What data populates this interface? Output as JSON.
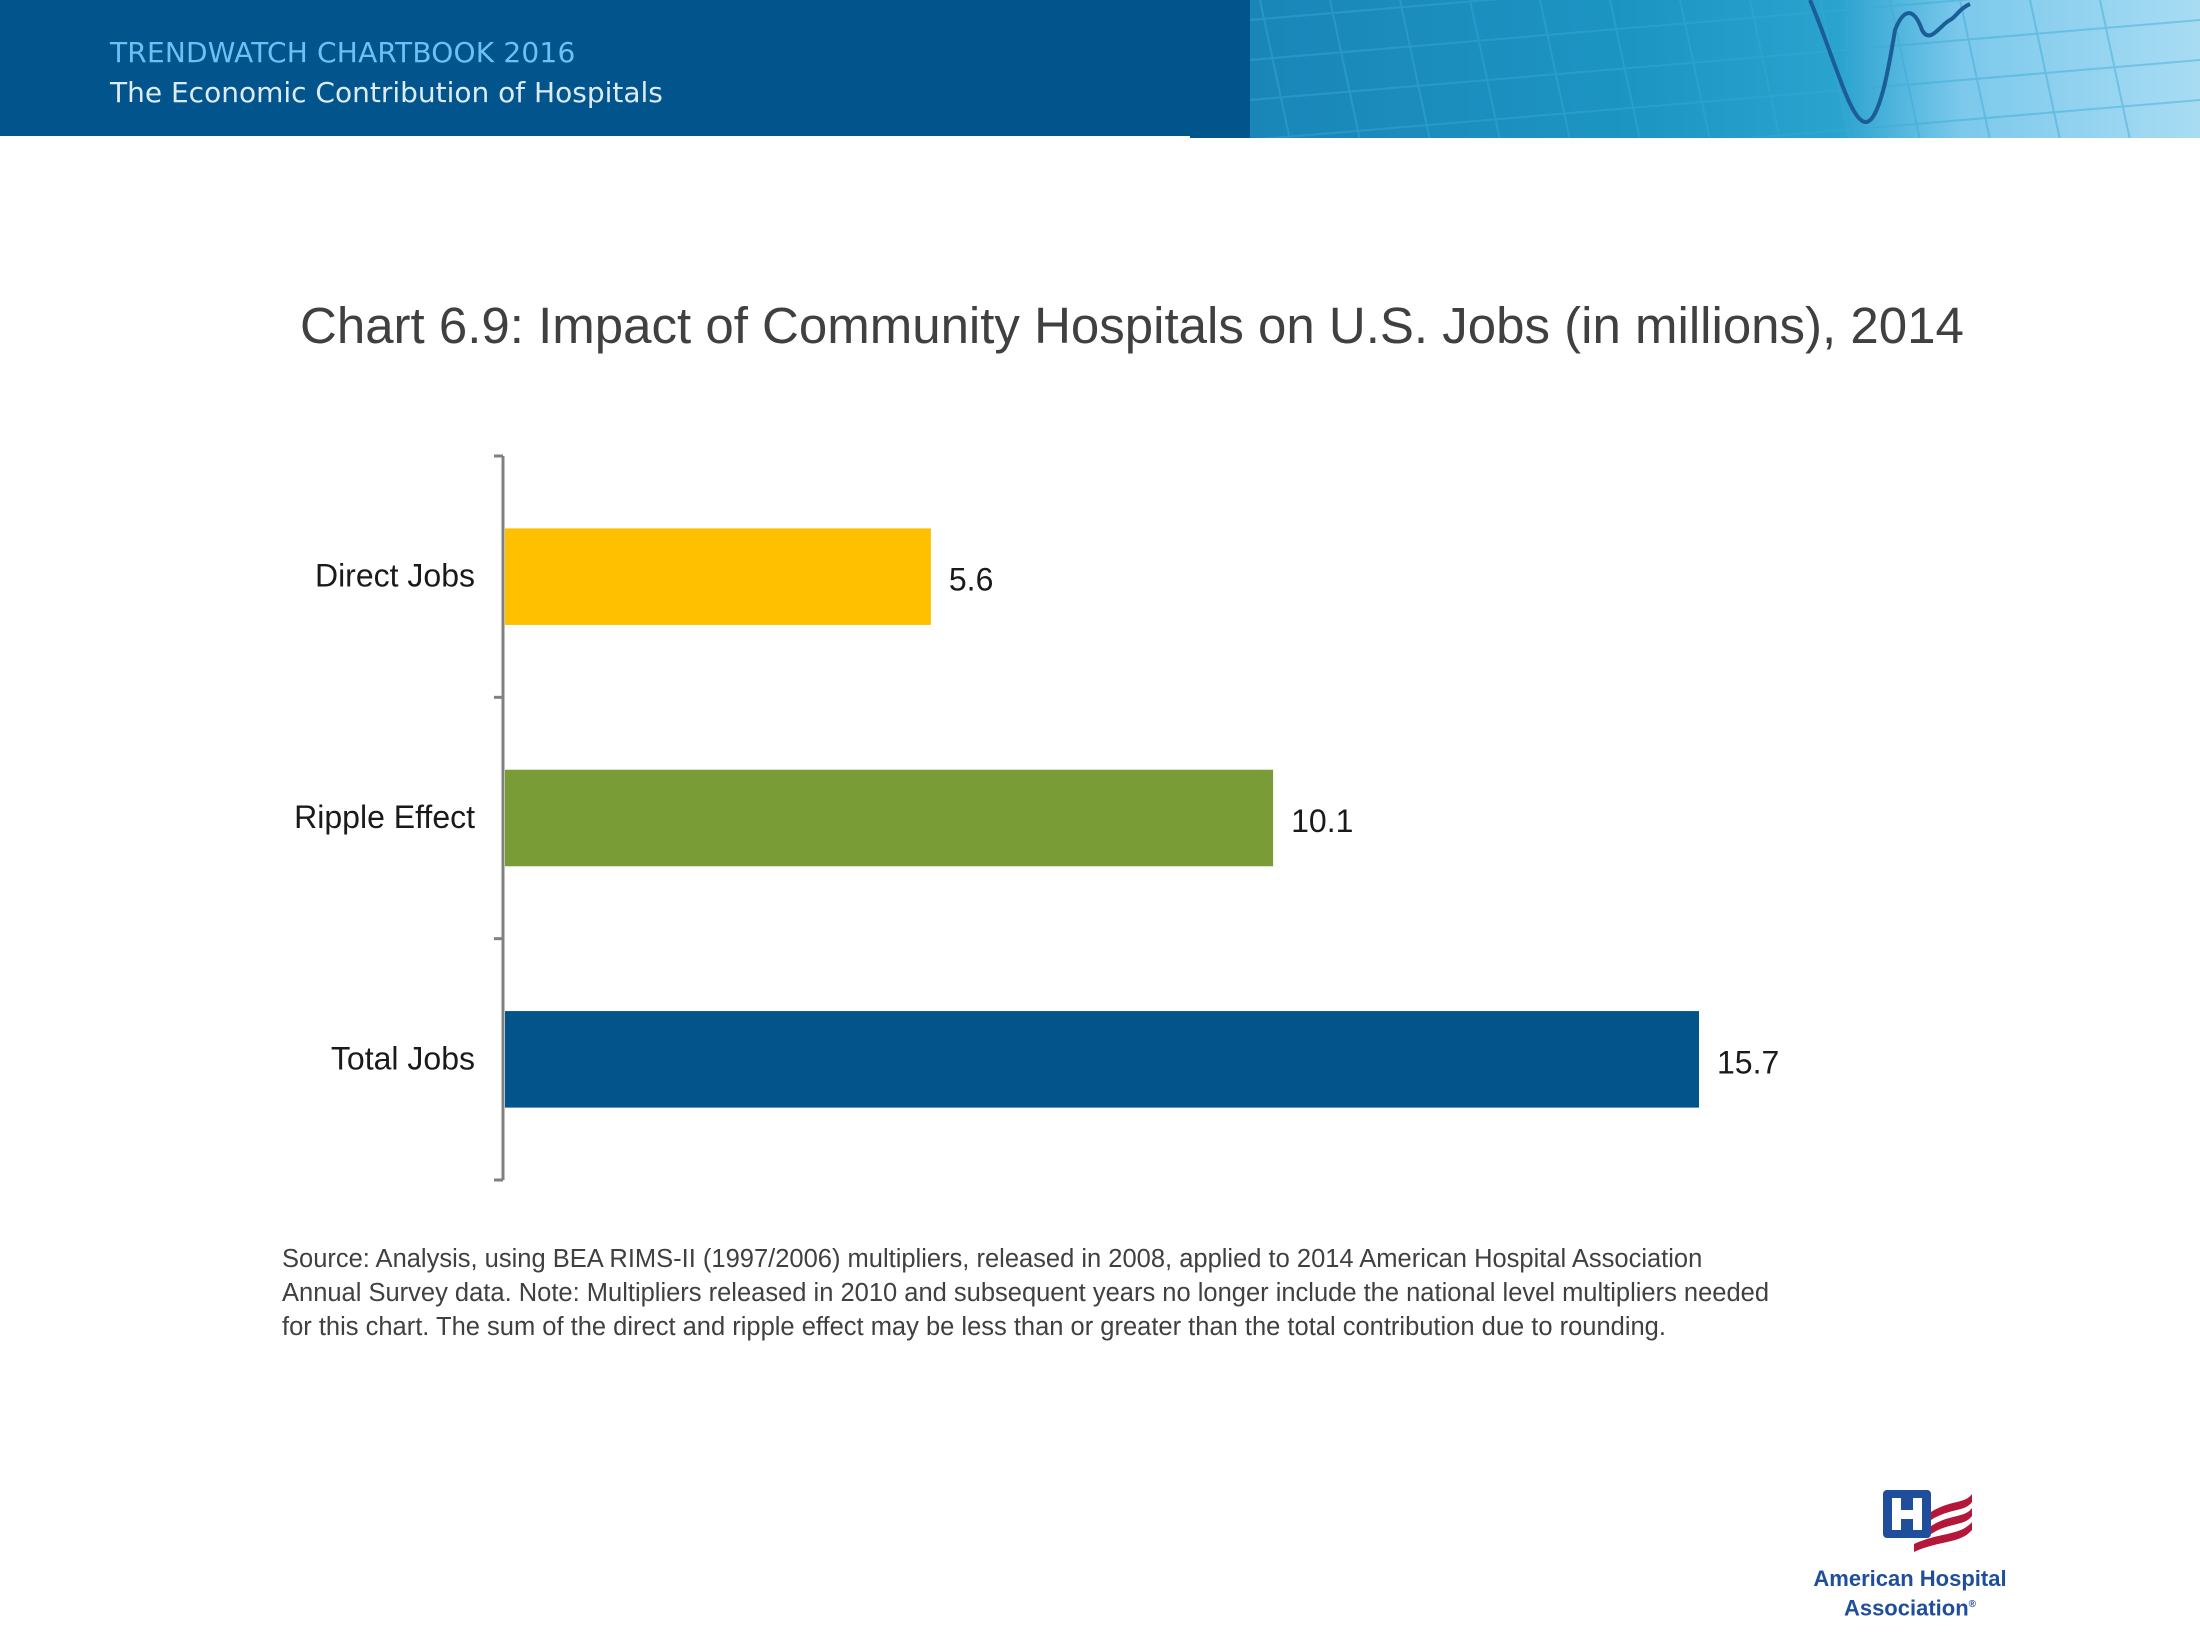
{
  "header": {
    "series_title": "TRENDWATCH CHARTBOOK 2016",
    "subtitle": "The Economic Contribution of Hospitals"
  },
  "chart_data": {
    "type": "bar",
    "orientation": "horizontal",
    "title": "Chart 6.9: Impact of Community Hospitals on U.S. Jobs (in millions), 2014",
    "categories": [
      "Direct Jobs",
      "Ripple Effect",
      "Total Jobs"
    ],
    "values": [
      5.6,
      10.1,
      15.7
    ],
    "value_labels": [
      "5.6",
      "10.1",
      "15.7"
    ],
    "colors": [
      "#ffc000",
      "#7a9c36",
      "#02548b"
    ],
    "xlabel": "",
    "ylabel": "",
    "xlim": [
      0,
      15.7
    ],
    "grid": false,
    "legend": "none",
    "units": "millions of jobs"
  },
  "source_note": "Source: Analysis, using BEA RIMS-II (1997/2006) multipliers, released in 2008, applied to 2014 American Hospital Association Annual Survey data. Note: Multipliers released in 2010 and subsequent years no longer include the national level multipliers needed for this chart. The sum of the direct and ripple effect may be less than or greater than the total contribution due to rounding.",
  "logo": {
    "line1": "American Hospital",
    "line2": "Association",
    "mark": "®",
    "brand_blue": "#1f4e9c",
    "brand_red": "#b5173a"
  }
}
